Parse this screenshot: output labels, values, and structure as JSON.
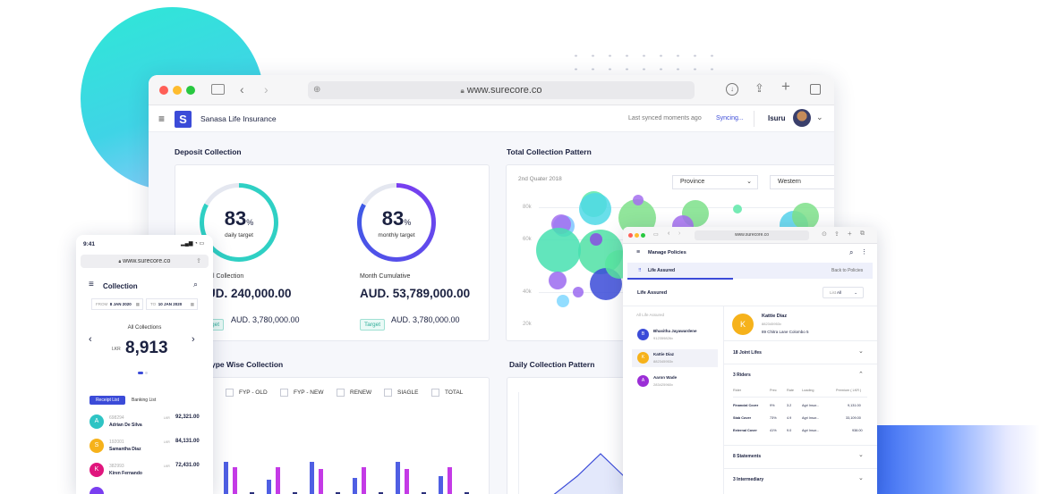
{
  "browser": {
    "url": "www.surecore.co",
    "colors": {
      "red": "#ff5f57",
      "yellow": "#febc2e",
      "green": "#28c840"
    }
  },
  "app": {
    "title": "Sanasa Life Insurance",
    "logo_letter": "S",
    "sync_status": "Last synced moments ago",
    "sync_action": "Syncing...",
    "user": "Isuru"
  },
  "deposit": {
    "title": "Deposit Collection",
    "daily": {
      "percent": "83",
      "unit": "%",
      "label": "daily target",
      "value": 0.83
    },
    "monthly": {
      "percent": "83",
      "unit": "%",
      "label": "monthly target",
      "value": 0.83
    },
    "left_col_label": "l Collection",
    "left_col_value": "UD. 240,000.00",
    "left_target_value": "AUD. 3,780,000.00",
    "left_target_tag": "get",
    "right_col_label": "Month Cumulative",
    "right_col_value": "AUD. 53,789,000.00",
    "right_target_tag": "Target",
    "right_target_value": "AUD. 3,780,000.00"
  },
  "total_collection": {
    "title": "Total Collection Pattern",
    "period": "2nd Quater 2018",
    "province_select": "Province",
    "region_select": "Western",
    "y_ticks": [
      "80k",
      "60k",
      "40k",
      "20k"
    ]
  },
  "type_wise": {
    "title": "ype Wise Collection",
    "legend": [
      "FYP - OLD",
      "FYP - NEW",
      "RENEW",
      "SIAGLE",
      "TOTAL"
    ]
  },
  "daily_pattern": {
    "title": "Daily Collection Pattern"
  },
  "phone": {
    "time": "9:41",
    "url": "www.surecore.co",
    "title": "Collection",
    "from_label": "FROM",
    "from_date": "8 JAN 2020",
    "to_label": "TO",
    "to_date": "10 JAN 2020",
    "all_collections": "All Collections",
    "currency": "LKR",
    "total": "8,913",
    "tab_receipt": "Receipt List",
    "tab_banking": "Banking List",
    "items": [
      {
        "initial": "A",
        "id": "698294",
        "name": "Adrian De Silva",
        "currency": "LKR",
        "amount": "92,321.00",
        "color": "#2ec4c4"
      },
      {
        "initial": "S",
        "id": "192001",
        "name": "Samantha Diaz",
        "currency": "LKR",
        "amount": "84,131.00",
        "color": "#f6b21b"
      },
      {
        "initial": "K",
        "id": "382993",
        "name": "Kiren Fernando",
        "currency": "LKR",
        "amount": "72,431.00",
        "color": "#e0157d"
      }
    ]
  },
  "policies": {
    "url": "www.surecore.co",
    "title": "Manage Policies",
    "tab": "Life Assured",
    "back": "Back to Policies",
    "section": "Life Assured",
    "filter_label": "List",
    "filter_value": "All",
    "list_header": "All Life Assured",
    "people": [
      {
        "initial": "B",
        "name": "Bhasitha Jayawardene",
        "id": "912359826v",
        "color": "#3b4bd8"
      },
      {
        "initial": "K",
        "name": "Kattie Diaz",
        "id": "882345953v",
        "color": "#f6b21b"
      },
      {
        "initial": "A",
        "name": "Aaron Wade",
        "id": "283425960v",
        "color": "#9b2ed6"
      }
    ],
    "selected": {
      "initial": "K",
      "name": "Kattie Diaz",
      "id": "882345953v",
      "address": "89 Chitra Lane Colombo 5"
    },
    "joint_lifes": "18 Joint Lifes",
    "riders_title": "3 Riders",
    "rider_cols": [
      "Rider",
      "Prec",
      "Rate",
      "Loading",
      "Premium ( LKR )"
    ],
    "riders": [
      {
        "name": "Financial Cover",
        "prec": "9%",
        "rate": "3.2",
        "loading": "Agri Insur...",
        "premium": "9,131.00"
      },
      {
        "name": "Stab Cover",
        "prec": "73%",
        "rate": "4.9",
        "loading": "Agri Insur...",
        "premium": "33,109.00"
      },
      {
        "name": "External Cover",
        "prec": "41%",
        "rate": "9.0",
        "loading": "Agri Insur...",
        "premium": "938.00"
      }
    ],
    "statements": "8 Statements",
    "intermediary": "3 Intermediary"
  }
}
